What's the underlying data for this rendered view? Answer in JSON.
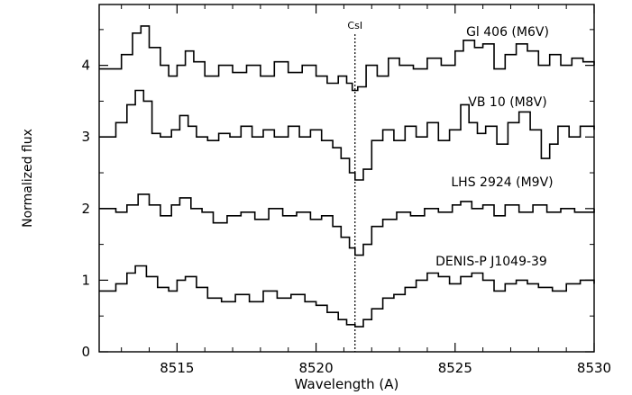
{
  "chart_data": {
    "type": "line",
    "title": "",
    "xlabel": "Wavelength (A)",
    "ylabel": "Normalized flux",
    "xlim": [
      8512.2,
      8530
    ],
    "ylim": [
      0,
      4.85
    ],
    "xticks": [
      8515,
      8520,
      8525,
      8530
    ],
    "yticks": [
      0,
      1,
      2,
      3,
      4
    ],
    "grid": false,
    "step": true,
    "annotation": {
      "label": "CsI",
      "x": 8521.4
    },
    "series": [
      {
        "name": "Gl 406 (M6V)",
        "x": [
          8512.2,
          8513.0,
          8513.4,
          8513.7,
          8514.0,
          8514.4,
          8514.7,
          8515.0,
          8515.3,
          8515.6,
          8516.0,
          8516.5,
          8517.0,
          8517.5,
          8518.0,
          8518.5,
          8519.0,
          8519.5,
          8520.0,
          8520.4,
          8520.8,
          8521.1,
          8521.3,
          8521.5,
          8521.8,
          8522.2,
          8522.6,
          8523.0,
          8523.5,
          8524.0,
          8524.5,
          8525.0,
          8525.3,
          8525.7,
          8526.0,
          8526.4,
          8526.8,
          8527.2,
          8527.6,
          8528.0,
          8528.4,
          8528.8,
          8529.2,
          8529.6,
          8530.0
        ],
        "values": [
          3.95,
          4.15,
          4.45,
          4.55,
          4.25,
          4.0,
          3.85,
          4.0,
          4.2,
          4.05,
          3.85,
          4.0,
          3.9,
          4.0,
          3.85,
          4.05,
          3.9,
          4.0,
          3.85,
          3.75,
          3.85,
          3.75,
          3.65,
          3.7,
          4.0,
          3.85,
          4.1,
          4.0,
          3.95,
          4.1,
          4.0,
          4.2,
          4.35,
          4.25,
          4.3,
          3.95,
          4.15,
          4.3,
          4.2,
          4.0,
          4.15,
          4.0,
          4.1,
          4.05,
          4.0
        ]
      },
      {
        "name": "VB 10 (M8V)",
        "x": [
          8512.2,
          8512.8,
          8513.2,
          8513.5,
          8513.8,
          8514.1,
          8514.4,
          8514.8,
          8515.1,
          8515.4,
          8515.7,
          8516.1,
          8516.5,
          8516.9,
          8517.3,
          8517.7,
          8518.1,
          8518.5,
          8519.0,
          8519.4,
          8519.8,
          8520.2,
          8520.6,
          8520.9,
          8521.2,
          8521.4,
          8521.7,
          8522.0,
          8522.4,
          8522.8,
          8523.2,
          8523.6,
          8524.0,
          8524.4,
          8524.8,
          8525.2,
          8525.5,
          8525.8,
          8526.1,
          8526.5,
          8526.9,
          8527.3,
          8527.7,
          8528.1,
          8528.4,
          8528.7,
          8529.1,
          8529.5,
          8530.0
        ],
        "values": [
          3.0,
          3.2,
          3.45,
          3.65,
          3.5,
          3.05,
          3.0,
          3.1,
          3.3,
          3.15,
          3.0,
          2.95,
          3.05,
          3.0,
          3.15,
          3.0,
          3.1,
          3.0,
          3.15,
          3.0,
          3.1,
          2.95,
          2.85,
          2.7,
          2.5,
          2.4,
          2.55,
          2.95,
          3.1,
          2.95,
          3.15,
          3.0,
          3.2,
          2.95,
          3.1,
          3.45,
          3.2,
          3.05,
          3.15,
          2.9,
          3.2,
          3.35,
          3.1,
          2.7,
          2.9,
          3.15,
          3.0,
          3.15,
          3.1
        ]
      },
      {
        "name": "LHS 2924 (M9V)",
        "x": [
          8512.2,
          8512.8,
          8513.2,
          8513.6,
          8514.0,
          8514.4,
          8514.8,
          8515.1,
          8515.5,
          8515.9,
          8516.3,
          8516.8,
          8517.3,
          8517.8,
          8518.3,
          8518.8,
          8519.3,
          8519.8,
          8520.2,
          8520.6,
          8520.9,
          8521.2,
          8521.4,
          8521.7,
          8522.0,
          8522.4,
          8522.9,
          8523.4,
          8523.9,
          8524.4,
          8524.9,
          8525.2,
          8525.6,
          8526.0,
          8526.4,
          8526.8,
          8527.3,
          8527.8,
          8528.3,
          8528.8,
          8529.3,
          8530.0
        ],
        "values": [
          2.0,
          1.95,
          2.05,
          2.2,
          2.05,
          1.9,
          2.05,
          2.15,
          2.0,
          1.95,
          1.8,
          1.9,
          1.95,
          1.85,
          2.0,
          1.9,
          1.95,
          1.85,
          1.9,
          1.75,
          1.6,
          1.45,
          1.35,
          1.5,
          1.75,
          1.85,
          1.95,
          1.9,
          2.0,
          1.95,
          2.05,
          2.1,
          2.0,
          2.05,
          1.9,
          2.05,
          1.95,
          2.05,
          1.95,
          2.0,
          1.95,
          2.0
        ]
      },
      {
        "name": "DENIS-P J1049-39",
        "x": [
          8512.2,
          8512.8,
          8513.2,
          8513.5,
          8513.9,
          8514.3,
          8514.7,
          8515.0,
          8515.3,
          8515.7,
          8516.1,
          8516.6,
          8517.1,
          8517.6,
          8518.1,
          8518.6,
          8519.1,
          8519.6,
          8520.0,
          8520.4,
          8520.8,
          8521.1,
          8521.4,
          8521.7,
          8522.0,
          8522.4,
          8522.8,
          8523.2,
          8523.6,
          8524.0,
          8524.4,
          8524.8,
          8525.2,
          8525.6,
          8526.0,
          8526.4,
          8526.8,
          8527.2,
          8527.6,
          8528.0,
          8528.5,
          8529.0,
          8529.5,
          8530.0
        ],
        "values": [
          0.85,
          0.95,
          1.1,
          1.2,
          1.05,
          0.9,
          0.85,
          1.0,
          1.05,
          0.9,
          0.75,
          0.7,
          0.8,
          0.7,
          0.85,
          0.75,
          0.8,
          0.7,
          0.65,
          0.55,
          0.45,
          0.38,
          0.35,
          0.45,
          0.6,
          0.75,
          0.8,
          0.9,
          1.0,
          1.1,
          1.05,
          0.95,
          1.05,
          1.1,
          1.0,
          0.85,
          0.95,
          1.0,
          0.95,
          0.9,
          0.85,
          0.95,
          1.0,
          0.95
        ]
      }
    ]
  }
}
